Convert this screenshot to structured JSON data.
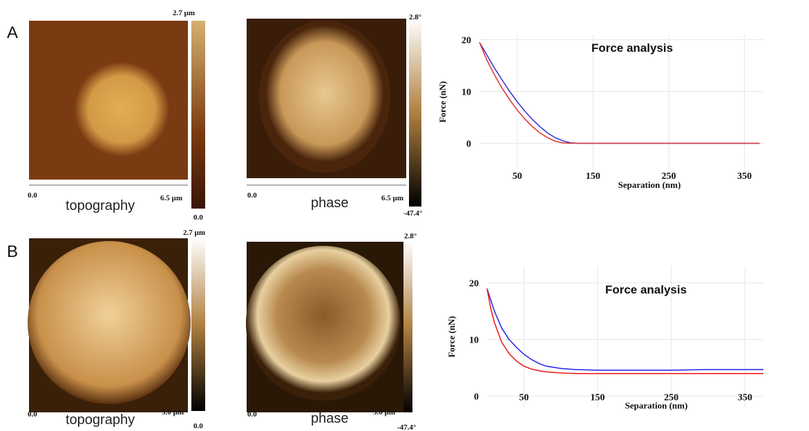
{
  "chart_data": [
    {
      "type": "line",
      "title": "Force analysis",
      "x_label": "Separation (nm)",
      "y_label": "Force (nN)",
      "xlim": [
        0,
        375
      ],
      "ylim": [
        -5,
        21
      ],
      "xticks": [
        50,
        150,
        250,
        350
      ],
      "yticks": [
        0,
        10,
        20
      ],
      "grid": true,
      "x": [
        0,
        10,
        20,
        30,
        40,
        50,
        60,
        70,
        80,
        90,
        100,
        110,
        120,
        130,
        140,
        150,
        200,
        250,
        300,
        350,
        370
      ],
      "series": [
        {
          "color": "#3b3bd6",
          "values": [
            19.5,
            17,
            14.5,
            12.2,
            10,
            8,
            6.2,
            4.6,
            3.2,
            2,
            1.1,
            0.5,
            0.1,
            0,
            0,
            0,
            0,
            0,
            0,
            0,
            0
          ]
        },
        {
          "color": "#e03a3a",
          "values": [
            19.5,
            16,
            13.2,
            10.6,
            8.4,
            6.4,
            4.7,
            3.2,
            2,
            1.1,
            0.4,
            0.1,
            0,
            0,
            0,
            0,
            0,
            0,
            0,
            0,
            0
          ]
        }
      ]
    },
    {
      "type": "line",
      "title": "Force analysis",
      "x_label": "Separation (nm)",
      "y_label": "Force (nN)",
      "xlim": [
        0,
        375
      ],
      "ylim": [
        -2,
        23
      ],
      "xticks": [
        50,
        150,
        250,
        350
      ],
      "yticks": [
        0,
        10,
        20
      ],
      "grid": true,
      "x": [
        0,
        5,
        10,
        20,
        30,
        40,
        50,
        60,
        70,
        80,
        100,
        120,
        150,
        200,
        250,
        300,
        350,
        375
      ],
      "series": [
        {
          "color": "#2f2fe8",
          "values": [
            19,
            17,
            15,
            12,
            10,
            8.6,
            7.4,
            6.5,
            5.8,
            5.3,
            4.9,
            4.7,
            4.6,
            4.6,
            4.6,
            4.7,
            4.7,
            4.7
          ]
        },
        {
          "color": "#f02020",
          "values": [
            19,
            15.5,
            13,
            9.5,
            7.5,
            6.2,
            5.3,
            4.8,
            4.5,
            4.3,
            4.1,
            4.0,
            4.0,
            4.0,
            4.0,
            4.0,
            4.0,
            4.0
          ]
        }
      ]
    }
  ],
  "panels": [
    {
      "label": "A",
      "images": [
        {
          "caption": "topography",
          "scale_start": "0.0",
          "scale_end": "6.5 µm",
          "color_max": "2.7 µm",
          "color_min": "0.0"
        },
        {
          "caption": "phase",
          "scale_start": "0.0",
          "scale_end": "6.5 µm",
          "color_max": "2.8°",
          "color_min": "-47.4°"
        }
      ]
    },
    {
      "label": "B",
      "images": [
        {
          "caption": "topography",
          "scale_start": "0.0",
          "scale_end": "5.0 µm",
          "color_max": "2.7 µm",
          "color_min": "0.0"
        },
        {
          "caption": "phase",
          "scale_start": "0.0",
          "scale_end": "5.0 µm",
          "color_max": "2.8°",
          "color_min": "-47.4°"
        }
      ]
    }
  ]
}
